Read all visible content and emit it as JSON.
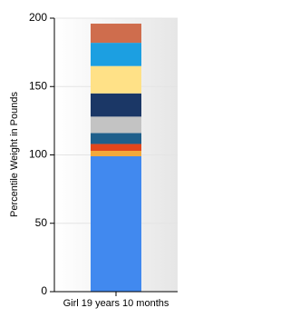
{
  "chart_data": {
    "type": "stacked_bar",
    "y_label": "Percentile Weight in Pounds",
    "categories": [
      "Girl 19 years 10 months"
    ],
    "series": [
      {
        "color": "#4189ef",
        "values": [
          99
        ]
      },
      {
        "color": "#f2a93b",
        "values": [
          4
        ]
      },
      {
        "color": "#e2461c",
        "values": [
          5
        ]
      },
      {
        "color": "#1f5f8b",
        "values": [
          8
        ]
      },
      {
        "color": "#c3c3c3",
        "values": [
          12
        ]
      },
      {
        "color": "#1b3766",
        "values": [
          17
        ]
      },
      {
        "color": "#ffe187",
        "values": [
          20
        ]
      },
      {
        "color": "#1c9fe1",
        "values": [
          17
        ]
      },
      {
        "color": "#cf6d4d",
        "values": [
          14
        ]
      }
    ],
    "ylim": [
      0,
      200
    ],
    "yticks": [
      0,
      50,
      100,
      150,
      200
    ],
    "grid": true
  }
}
